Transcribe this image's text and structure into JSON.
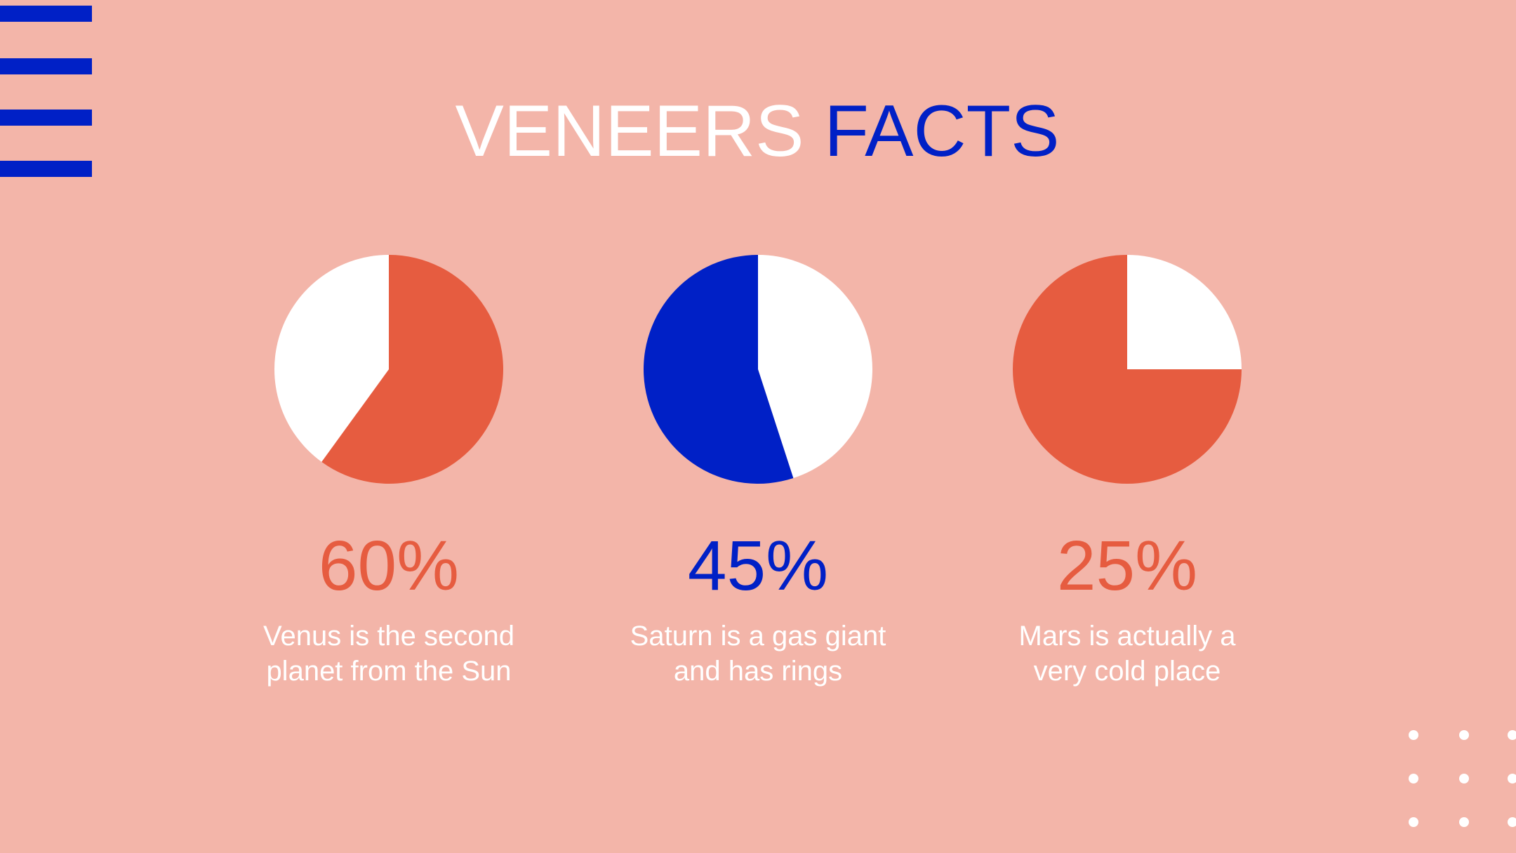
{
  "title_part1": "VENEERS",
  "title_part2": "FACTS",
  "chart_data": [
    {
      "type": "pie",
      "value": 60,
      "value_label": "60%",
      "colors": [
        "#e65c40",
        "#ffffff"
      ],
      "label_color": "#e65c40",
      "caption": [
        "Venus is the second",
        "planet from the Sun"
      ]
    },
    {
      "type": "pie",
      "value": 45,
      "value_label": "45%",
      "colors": [
        "#ffffff",
        "#0020c6"
      ],
      "label_color": "#0020c6",
      "caption": [
        "Saturn is a gas giant",
        "and has rings"
      ]
    },
    {
      "type": "pie",
      "value": 25,
      "value_label": "25%",
      "colors": [
        "#ffffff",
        "#e65c40"
      ],
      "label_color": "#e65c40",
      "caption": [
        "Mars is actually a",
        "very cold place"
      ]
    }
  ]
}
